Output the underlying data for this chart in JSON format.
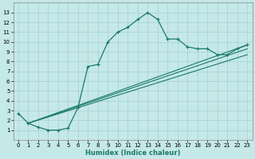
{
  "xlabel": "Humidex (Indice chaleur)",
  "ylabel": "",
  "bg_color": "#c5e8e8",
  "grid_color": "#aad4d4",
  "line_color": "#1a7a6a",
  "xlim": [
    -0.5,
    23.5
  ],
  "ylim": [
    0,
    14
  ],
  "xticks": [
    0,
    1,
    2,
    3,
    4,
    5,
    6,
    7,
    8,
    9,
    10,
    11,
    12,
    13,
    14,
    15,
    16,
    17,
    18,
    19,
    20,
    21,
    22,
    23
  ],
  "yticks": [
    1,
    2,
    3,
    4,
    5,
    6,
    7,
    8,
    9,
    10,
    11,
    12,
    13
  ],
  "main_x": [
    0,
    1,
    2,
    3,
    4,
    5,
    6,
    7,
    8,
    9,
    10,
    11,
    12,
    13,
    14,
    15,
    16,
    17,
    18,
    19,
    20,
    21,
    22,
    23
  ],
  "main_y": [
    2.7,
    1.7,
    1.3,
    1.0,
    1.0,
    1.2,
    3.3,
    7.5,
    7.7,
    10.0,
    11.0,
    11.5,
    12.3,
    13.0,
    12.3,
    10.3,
    10.3,
    9.5,
    9.3,
    9.3,
    8.7,
    8.7,
    9.3,
    9.7
  ],
  "diag_lines": [
    {
      "x": [
        1,
        23
      ],
      "y": [
        1.7,
        9.7
      ]
    },
    {
      "x": [
        1,
        23
      ],
      "y": [
        1.7,
        9.3
      ]
    },
    {
      "x": [
        1,
        23
      ],
      "y": [
        1.7,
        8.7
      ]
    }
  ],
  "xlabel_fontsize": 6,
  "tick_fontsize": 5
}
